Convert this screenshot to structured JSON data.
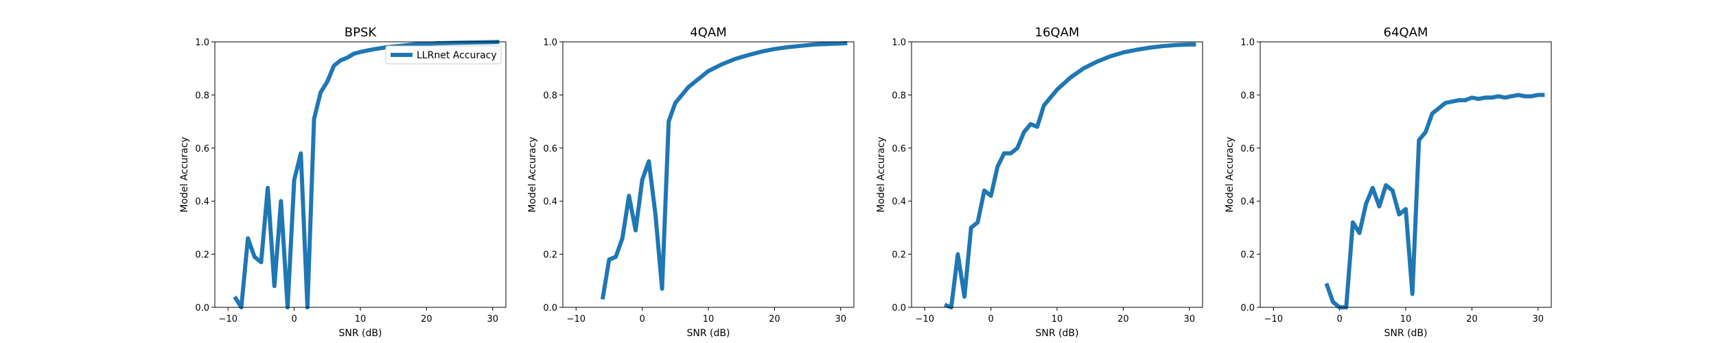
{
  "colors": {
    "series": "#1f77b4",
    "axes": "#000000",
    "background": "#ffffff"
  },
  "chart_data": [
    {
      "type": "line",
      "title": "BPSK",
      "xlabel": "SNR (dB)",
      "ylabel": "Model Accuracy",
      "xlim": [
        -12,
        32
      ],
      "ylim": [
        0,
        1
      ],
      "xticks": [
        -10,
        0,
        10,
        20,
        30
      ],
      "yticks": [
        0.0,
        0.2,
        0.4,
        0.6,
        0.8,
        1.0
      ],
      "xtick_labels": [
        "−10",
        "0",
        "10",
        "20",
        "30"
      ],
      "ytick_labels": [
        "0.0",
        "0.2",
        "0.4",
        "0.6",
        "0.8",
        "1.0"
      ],
      "legend": {
        "placement": "upper-right",
        "entries": [
          "LLRnet Accuracy"
        ]
      },
      "grid": false,
      "series": [
        {
          "name": "LLRnet Accuracy",
          "x": [
            -9,
            -8,
            -7,
            -6,
            -5,
            -4,
            -3,
            -2,
            -1,
            0,
            1,
            2,
            3,
            4,
            5,
            6,
            7,
            8,
            9,
            10,
            12,
            14,
            16,
            18,
            20,
            22,
            24,
            26,
            28,
            30,
            31
          ],
          "y": [
            0.04,
            0.0,
            0.26,
            0.19,
            0.17,
            0.45,
            0.08,
            0.4,
            0.0,
            0.48,
            0.58,
            0.0,
            0.71,
            0.81,
            0.85,
            0.91,
            0.93,
            0.94,
            0.955,
            0.962,
            0.972,
            0.98,
            0.985,
            0.99,
            0.993,
            0.995,
            0.996,
            0.997,
            0.998,
            0.999,
            1.0
          ]
        }
      ]
    },
    {
      "type": "line",
      "title": "4QAM",
      "xlabel": "SNR (dB)",
      "ylabel": "Model Accuracy",
      "xlim": [
        -12,
        32
      ],
      "ylim": [
        0,
        1
      ],
      "xticks": [
        -10,
        0,
        10,
        20,
        30
      ],
      "yticks": [
        0.0,
        0.2,
        0.4,
        0.6,
        0.8,
        1.0
      ],
      "xtick_labels": [
        "−10",
        "0",
        "10",
        "20",
        "30"
      ],
      "ytick_labels": [
        "0.0",
        "0.2",
        "0.4",
        "0.6",
        "0.8",
        "1.0"
      ],
      "grid": false,
      "series": [
        {
          "x": [
            -6,
            -5,
            -4,
            -3,
            -2,
            -1,
            0,
            1,
            2,
            3,
            4,
            5,
            6,
            7,
            8,
            10,
            12,
            14,
            16,
            18,
            20,
            22,
            24,
            26,
            28,
            30,
            31
          ],
          "y": [
            0.03,
            0.18,
            0.19,
            0.26,
            0.42,
            0.29,
            0.48,
            0.55,
            0.35,
            0.07,
            0.7,
            0.77,
            0.8,
            0.83,
            0.85,
            0.89,
            0.915,
            0.935,
            0.95,
            0.963,
            0.973,
            0.98,
            0.985,
            0.99,
            0.992,
            0.994,
            0.995
          ]
        }
      ]
    },
    {
      "type": "line",
      "title": "16QAM",
      "xlabel": "SNR (dB)",
      "ylabel": "Model Accuracy",
      "xlim": [
        -12,
        32
      ],
      "ylim": [
        0,
        1
      ],
      "xticks": [
        -10,
        0,
        10,
        20,
        30
      ],
      "yticks": [
        0.0,
        0.2,
        0.4,
        0.6,
        0.8,
        1.0
      ],
      "xtick_labels": [
        "−10",
        "0",
        "10",
        "20",
        "30"
      ],
      "ytick_labels": [
        "0.0",
        "0.2",
        "0.4",
        "0.6",
        "0.8",
        "1.0"
      ],
      "grid": false,
      "series": [
        {
          "x": [
            -7,
            -6,
            -5,
            -4,
            -3,
            -2,
            -1,
            0,
            1,
            2,
            3,
            4,
            5,
            6,
            7,
            8,
            10,
            12,
            14,
            16,
            18,
            20,
            22,
            24,
            26,
            28,
            30,
            31
          ],
          "y": [
            0.01,
            0.0,
            0.2,
            0.04,
            0.3,
            0.32,
            0.44,
            0.42,
            0.53,
            0.58,
            0.58,
            0.6,
            0.66,
            0.69,
            0.68,
            0.76,
            0.82,
            0.865,
            0.9,
            0.925,
            0.945,
            0.96,
            0.97,
            0.978,
            0.984,
            0.988,
            0.99,
            0.99
          ]
        }
      ]
    },
    {
      "type": "line",
      "title": "64QAM",
      "xlabel": "SNR (dB)",
      "ylabel": "Model Accuracy",
      "xlim": [
        -12,
        32
      ],
      "ylim": [
        0,
        1
      ],
      "xticks": [
        -10,
        0,
        10,
        20,
        30
      ],
      "yticks": [
        0.0,
        0.2,
        0.4,
        0.6,
        0.8,
        1.0
      ],
      "xtick_labels": [
        "−10",
        "0",
        "10",
        "20",
        "30"
      ],
      "ytick_labels": [
        "0.0",
        "0.2",
        "0.4",
        "0.6",
        "0.8",
        "1.0"
      ],
      "grid": false,
      "series": [
        {
          "x": [
            -2,
            -1,
            0,
            1,
            2,
            3,
            4,
            5,
            6,
            7,
            8,
            9,
            10,
            11,
            12,
            13,
            14,
            15,
            16,
            17,
            18,
            19,
            20,
            21,
            22,
            23,
            24,
            25,
            26,
            27,
            28,
            29,
            30,
            31
          ],
          "y": [
            0.09,
            0.02,
            0.0,
            0.0,
            0.32,
            0.28,
            0.39,
            0.45,
            0.38,
            0.46,
            0.44,
            0.35,
            0.37,
            0.05,
            0.63,
            0.66,
            0.73,
            0.75,
            0.77,
            0.775,
            0.78,
            0.78,
            0.79,
            0.785,
            0.79,
            0.79,
            0.795,
            0.79,
            0.795,
            0.8,
            0.795,
            0.795,
            0.8,
            0.8
          ]
        }
      ]
    }
  ]
}
